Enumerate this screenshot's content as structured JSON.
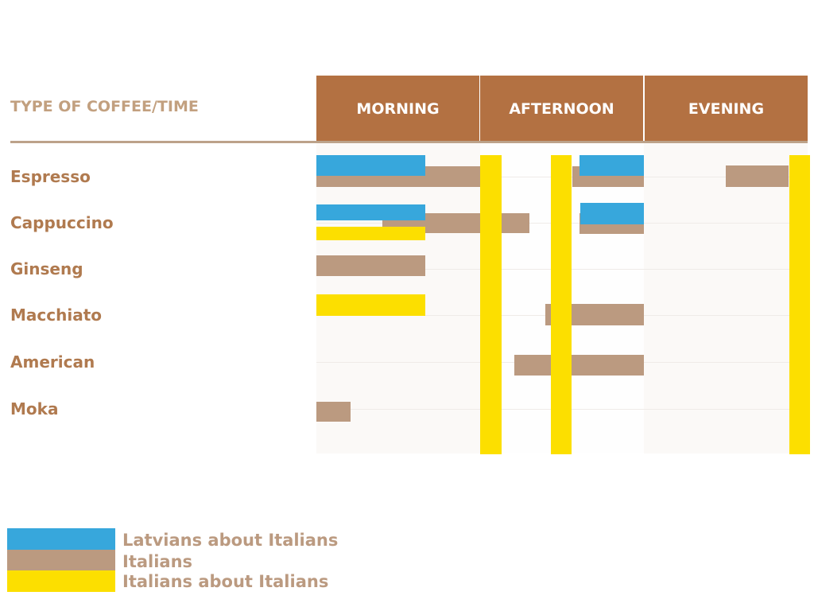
{
  "chart_data": {
    "type": "gantt",
    "corner_label": "TYPE OF COFFEE/TIME",
    "columns": [
      "MORNING",
      "AFTERNOON",
      "EVENING"
    ],
    "x_range": [
      0,
      3
    ],
    "rows": [
      "Espresso",
      "Cappuccino",
      "Ginseng",
      "Macchiato",
      "American",
      "Moka"
    ],
    "series": [
      {
        "name": "Latvians about Italians",
        "color": "#37a7dc"
      },
      {
        "name": "Italians",
        "color": "#bb9a80"
      },
      {
        "name": "Italians about Italians",
        "color": "#fcdf00"
      }
    ],
    "bars": [
      {
        "row": 0,
        "series": 1,
        "start": 0.0,
        "end": 1.0
      },
      {
        "row": 0,
        "series": 0,
        "start": 0.0,
        "end": 0.665
      },
      {
        "row": 0,
        "series": 1,
        "start": 1.563,
        "end": 2.0
      },
      {
        "row": 0,
        "series": 0,
        "start": 1.607,
        "end": 2.0
      },
      {
        "row": 0,
        "series": 1,
        "start": 2.5,
        "end": 2.883
      },
      {
        "row": 1,
        "series": 1,
        "start": 0.403,
        "end": 1.301
      },
      {
        "row": 1,
        "series": 0,
        "start": 0.0,
        "end": 0.665
      },
      {
        "row": 1,
        "series": 2,
        "start": 0.0,
        "end": 0.665
      },
      {
        "row": 1,
        "series": 1,
        "start": 1.607,
        "end": 2.0
      },
      {
        "row": 1,
        "series": 0,
        "start": 1.612,
        "end": 2.0
      },
      {
        "row": 2,
        "series": 1,
        "start": 0.0,
        "end": 0.665
      },
      {
        "row": 3,
        "series": 2,
        "start": 0.0,
        "end": 0.665
      },
      {
        "row": 3,
        "series": 1,
        "start": 1.398,
        "end": 2.0
      },
      {
        "row": 4,
        "series": 1,
        "start": 1.209,
        "end": 2.0
      },
      {
        "row": 5,
        "series": 1,
        "start": 0.0,
        "end": 0.209
      }
    ],
    "all_rows_bars": [
      {
        "series": 2,
        "start": 1.0,
        "end": 1.131
      },
      {
        "series": 2,
        "start": 1.432,
        "end": 1.558
      },
      {
        "series": 2,
        "start": 2.888,
        "end": 3.015
      }
    ]
  }
}
